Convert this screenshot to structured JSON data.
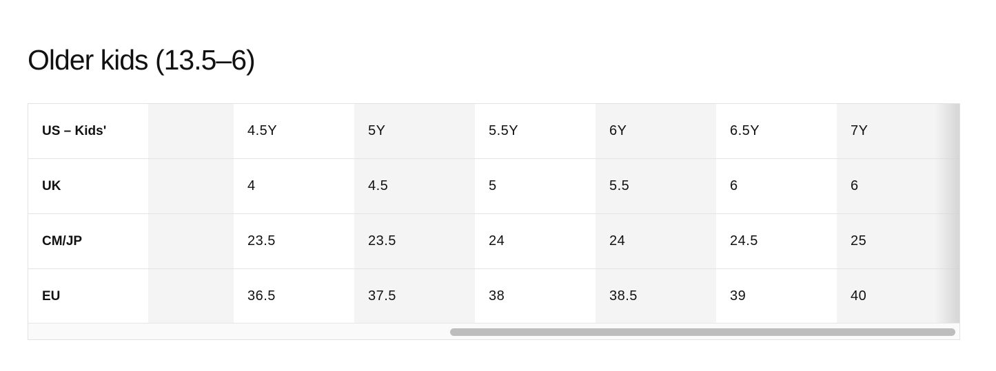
{
  "title": "Older kids (13.5–6)",
  "rows": [
    {
      "label": "US – Kids'",
      "values": [
        "4.5Y",
        "5Y",
        "5.5Y",
        "6Y",
        "6.5Y",
        "7Y"
      ]
    },
    {
      "label": "UK",
      "values": [
        "4",
        "4.5",
        "5",
        "5.5",
        "6",
        "6"
      ]
    },
    {
      "label": "CM/JP",
      "values": [
        "23.5",
        "23.5",
        "24",
        "24",
        "24.5",
        "25"
      ]
    },
    {
      "label": "EU",
      "values": [
        "36.5",
        "37.5",
        "38",
        "38.5",
        "39",
        "40"
      ]
    }
  ],
  "scroll_position_percent": 52
}
